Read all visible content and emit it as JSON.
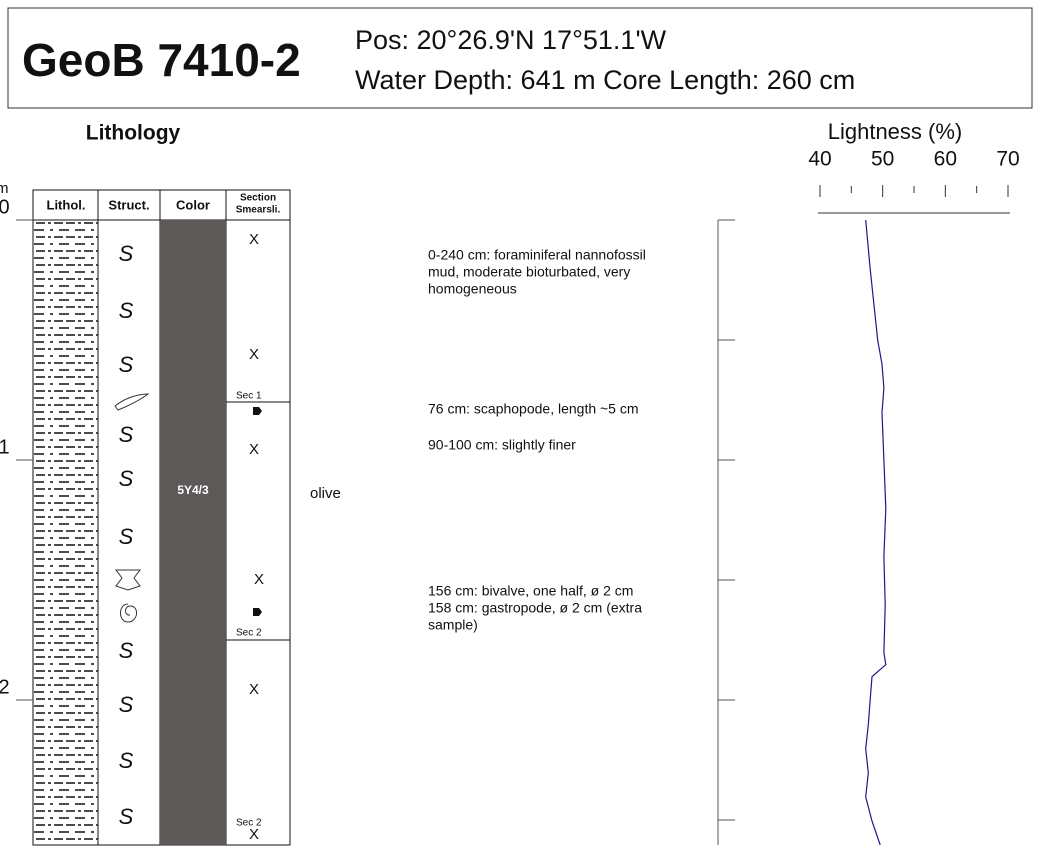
{
  "header": {
    "core": "GeoB 7410-2",
    "position": "Pos: 20°26.9'N 17°51.1'W",
    "details": "Water Depth: 641 m Core Length: 260 cm"
  },
  "lithology_title": "Lithology",
  "depth_unit": "m",
  "depth_ticks": [
    0,
    1,
    2
  ],
  "columns": [
    "Lithol.",
    "Struct.",
    "Color"
  ],
  "section_header": [
    "Section",
    "Smearsli."
  ],
  "structure_symbol": "S",
  "color_code": "5Y4/3",
  "color_name": "olive",
  "section_labels": [
    "Sec 1",
    "Sec 2",
    "Sec 2"
  ],
  "smear_slide_marker": "X",
  "descriptions": [
    [
      "0-240 cm: foraminiferal nannofossil",
      "mud, moderate bioturbated, very",
      "homogeneous"
    ],
    [
      "76 cm: scaphopode, length ~5 cm"
    ],
    [
      "90-100 cm: slightly finer"
    ],
    [
      "156 cm: bivalve, one half, ø 2 cm",
      "158 cm: gastropode, ø 2 cm (extra",
      "sample)"
    ]
  ],
  "lightness": {
    "type": "line",
    "title": "Lightness (%)",
    "xlim": [
      40,
      70
    ],
    "xticks": [
      40,
      50,
      60,
      70
    ],
    "ylim": [
      0,
      260
    ],
    "depth_cm": [
      0,
      20,
      50,
      60,
      70,
      80,
      100,
      120,
      140,
      160,
      180,
      185,
      190,
      200,
      210,
      220,
      230,
      240,
      250,
      260
    ],
    "values": [
      47.3,
      48.0,
      49.2,
      49.9,
      50.2,
      49.9,
      50.2,
      50.5,
      50.2,
      50.4,
      50.2,
      50.5,
      48.3,
      48.0,
      47.7,
      47.3,
      47.7,
      47.3,
      48.3,
      49.6
    ],
    "color": "#1a1a8c"
  }
}
